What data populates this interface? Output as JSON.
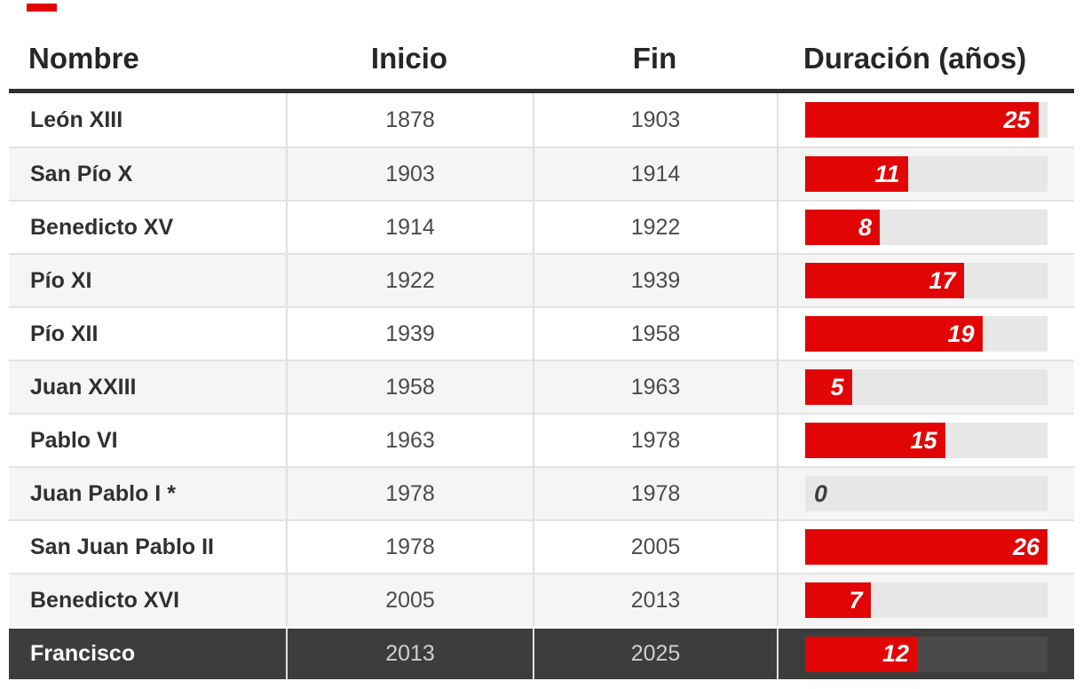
{
  "brand": {
    "dash_color": "#e10505"
  },
  "chart_data": {
    "type": "table",
    "columns": [
      "Nombre",
      "Inicio",
      "Fin",
      "Duración (años)"
    ],
    "bar_column": "Duración (años)",
    "bar_max": 26,
    "rows": [
      {
        "nombre": "León XIII",
        "inicio": "1878",
        "fin": "1903",
        "duracion": 25,
        "highlight": false
      },
      {
        "nombre": "San Pío X",
        "inicio": "1903",
        "fin": "1914",
        "duracion": 11,
        "highlight": false
      },
      {
        "nombre": "Benedicto XV",
        "inicio": "1914",
        "fin": "1922",
        "duracion": 8,
        "highlight": false
      },
      {
        "nombre": "Pío XI",
        "inicio": "1922",
        "fin": "1939",
        "duracion": 17,
        "highlight": false
      },
      {
        "nombre": "Pío XII",
        "inicio": "1939",
        "fin": "1958",
        "duracion": 19,
        "highlight": false
      },
      {
        "nombre": "Juan XXIII",
        "inicio": "1958",
        "fin": "1963",
        "duracion": 5,
        "highlight": false
      },
      {
        "nombre": "Pablo VI",
        "inicio": "1963",
        "fin": "1978",
        "duracion": 15,
        "highlight": false
      },
      {
        "nombre": "Juan Pablo I *",
        "inicio": "1978",
        "fin": "1978",
        "duracion": 0,
        "highlight": false
      },
      {
        "nombre": "San Juan Pablo II",
        "inicio": "1978",
        "fin": "2005",
        "duracion": 26,
        "highlight": false
      },
      {
        "nombre": "Benedicto XVI",
        "inicio": "2005",
        "fin": "2013",
        "duracion": 7,
        "highlight": false
      },
      {
        "nombre": "Francisco",
        "inicio": "2013",
        "fin": "2025",
        "duracion": 12,
        "highlight": true
      }
    ],
    "colors": {
      "bar": "#e10505",
      "bar_track": "#e7e7e7",
      "stripe_row_bg": "#f5f5f5",
      "highlight_row_bg": "#3d3d3d",
      "highlight_row_track": "#4a4a4a",
      "header_rule": "#2d2d2d",
      "zero_label": "#3f3f3f"
    },
    "legend_position": "none",
    "grid": "row-separators"
  }
}
